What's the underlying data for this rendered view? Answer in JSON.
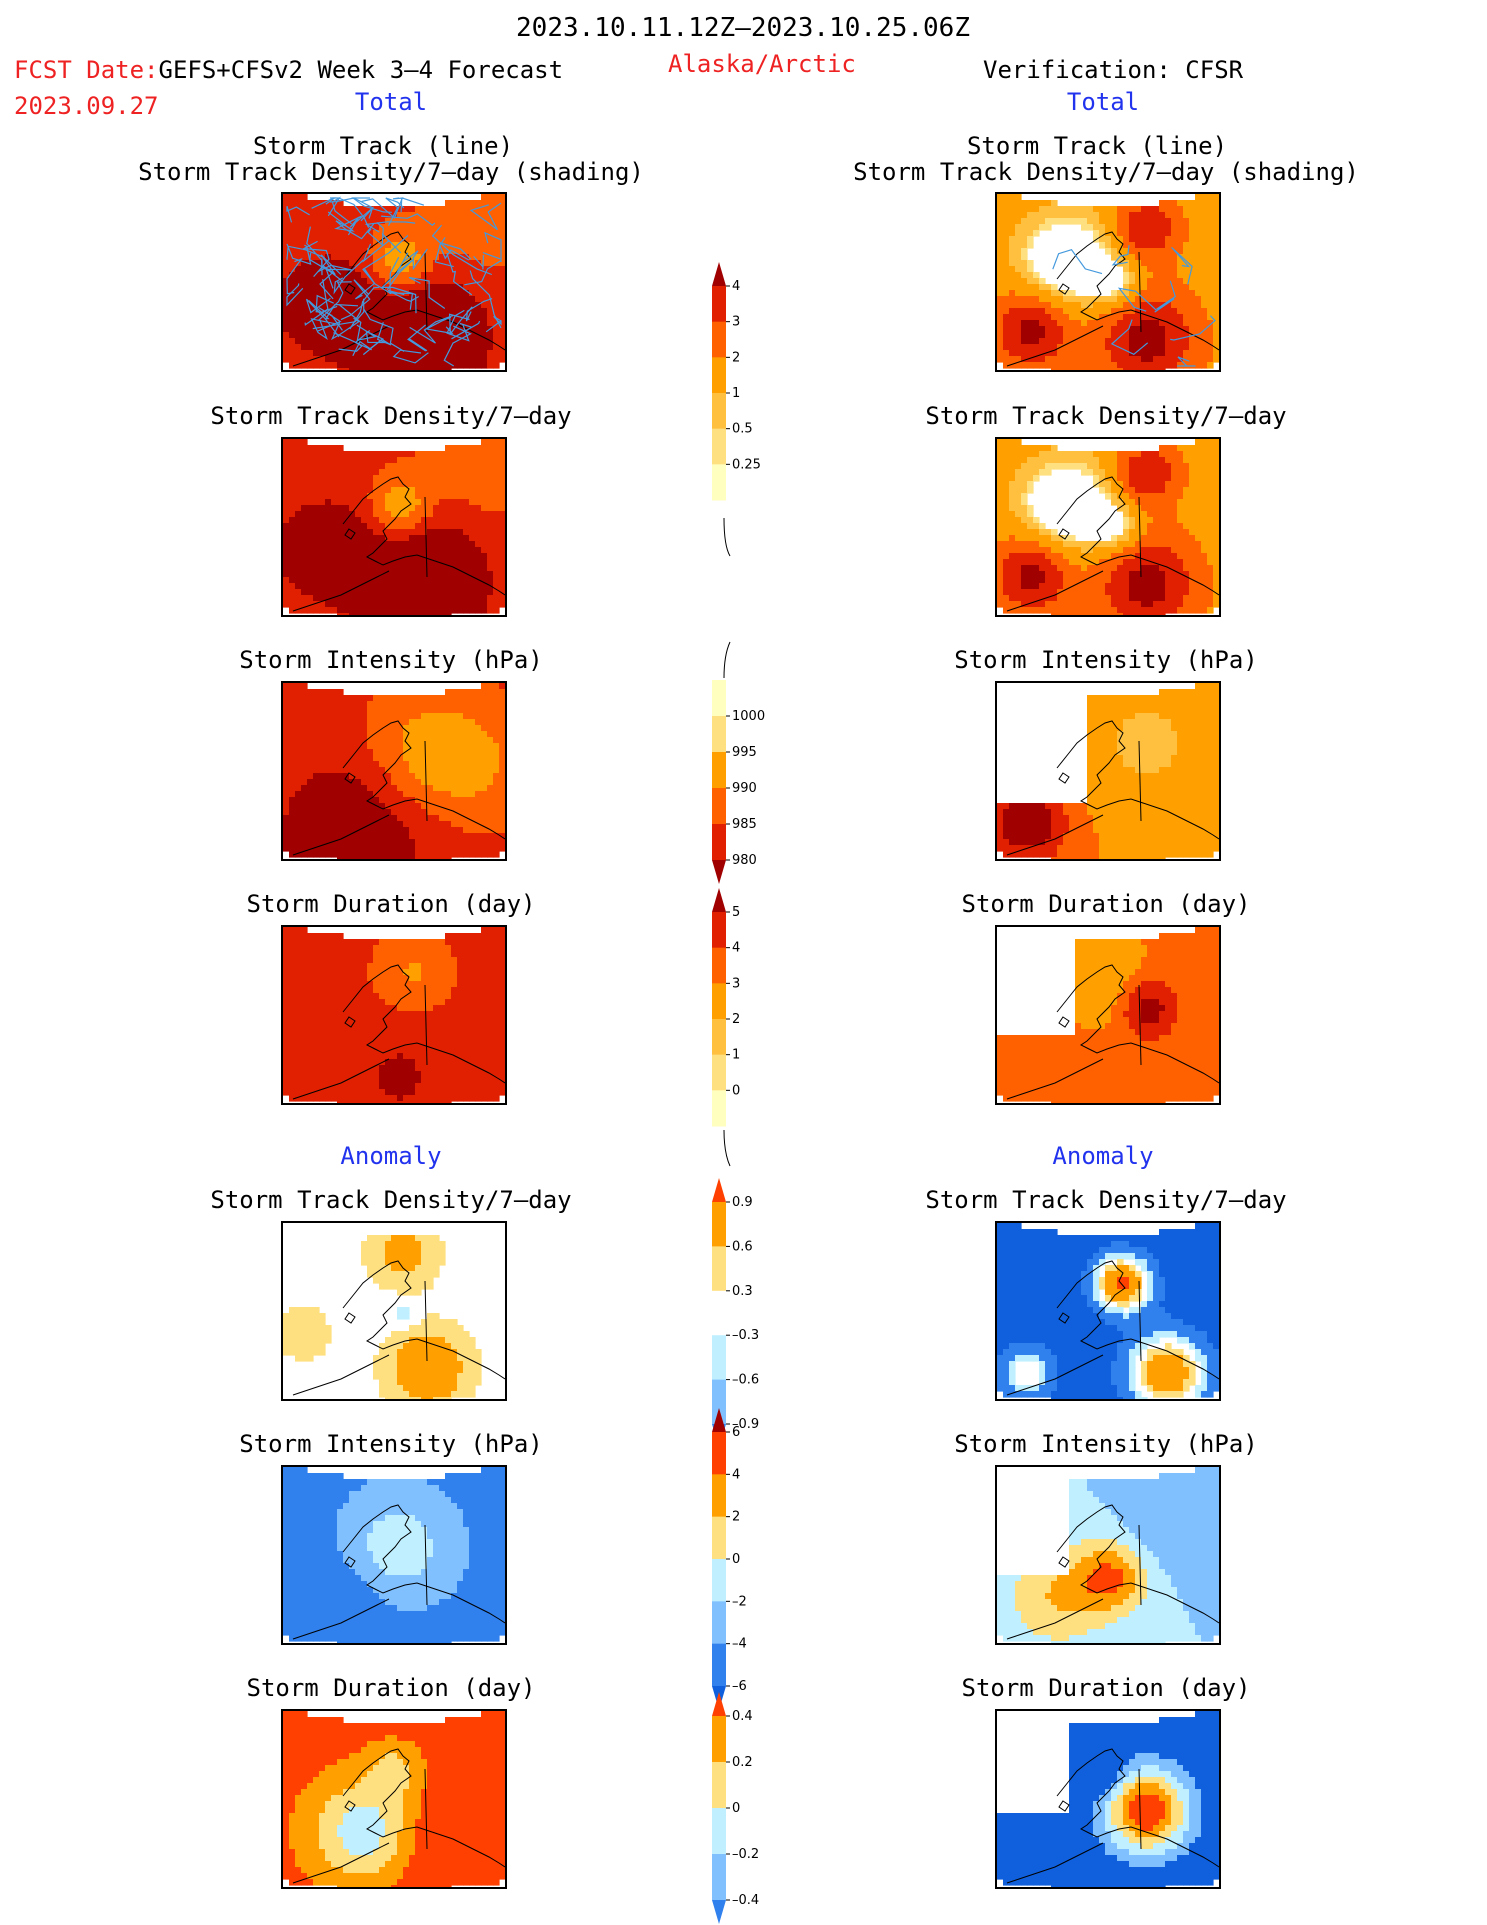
{
  "header": {
    "date_range": "2023.10.11.12Z–2023.10.25.06Z",
    "fcst_prefix": "FCST Date:",
    "forecast_label": "GEFS+CFSv2 Week 3–4 Forecast",
    "fcst_date": "2023.09.27",
    "region": "Alaska/Arctic",
    "verification": "Verification: CFSR"
  },
  "sections": {
    "total": "Total",
    "anomaly": "Anomaly"
  },
  "titles": {
    "track_line": "Storm Track (line)",
    "track_density_shading": "Storm Track Density/7–day (shading)",
    "track_density": "Storm Track Density/7–day",
    "intensity": "Storm Intensity (hPa)",
    "duration": "Storm Duration (day)"
  },
  "colorbars": [
    {
      "id": "density",
      "ticks": [
        "0.25",
        "0.5",
        "1",
        "2",
        "3",
        "4"
      ],
      "colors": [
        "#ffffc0",
        "#ffe080",
        "#ffc040",
        "#ffa000",
        "#ff6000",
        "#e02000",
        "#a00000"
      ],
      "arrow_top": true,
      "arrow_bottom": false
    },
    {
      "id": "intensity",
      "ticks": [
        "1000",
        "995",
        "990",
        "985",
        "980"
      ],
      "colors": [
        "#ffffc0",
        "#ffe080",
        "#ffa000",
        "#ff6000",
        "#e02000",
        "#a00000"
      ],
      "arrow_top": false,
      "arrow_bottom": true
    },
    {
      "id": "duration",
      "ticks": [
        "0",
        "1",
        "2",
        "3",
        "4",
        "5"
      ],
      "colors": [
        "#ffffc0",
        "#ffe080",
        "#ffc040",
        "#ffa000",
        "#ff6000",
        "#e02000",
        "#a00000"
      ],
      "arrow_top": true,
      "arrow_bottom": false
    },
    {
      "id": "density_anom",
      "ticks": [
        "0.9",
        "0.6",
        "0.3",
        "–0.3",
        "–0.6",
        "–0.9"
      ],
      "colors": [
        "#ff4000",
        "#ffa000",
        "#ffe080",
        "#ffffff",
        "#c0f0ff",
        "#80c0ff",
        "#3080ee"
      ],
      "arrow_top": true,
      "arrow_bottom": true
    },
    {
      "id": "intensity_anom",
      "ticks": [
        "6",
        "4",
        "2",
        "0",
        "–2",
        "–4",
        "–6"
      ],
      "colors": [
        "#a00000",
        "#ff4000",
        "#ffa000",
        "#ffe080",
        "#c0f0ff",
        "#80c0ff",
        "#3080ee",
        "#1060dd"
      ],
      "arrow_top": true,
      "arrow_bottom": true
    },
    {
      "id": "duration_anom",
      "ticks": [
        "0.4",
        "0.2",
        "0",
        "–0.2",
        "–0.4"
      ],
      "colors": [
        "#ff4000",
        "#ffa000",
        "#ffe080",
        "#c0f0ff",
        "#80c0ff",
        "#3080ee"
      ],
      "arrow_top": true,
      "arrow_bottom": true
    }
  ],
  "colors": {
    "palette_warm": [
      "#ffffc0",
      "#ffe080",
      "#ffc040",
      "#ffa000",
      "#ff6000",
      "#e02000",
      "#a00000"
    ],
    "palette_anom": [
      "#1060dd",
      "#3080ee",
      "#80c0ff",
      "#c0f0ff",
      "#ffffff",
      "#ffe080",
      "#ffa000",
      "#ff4000"
    ],
    "track_line": "#4499dd"
  }
}
